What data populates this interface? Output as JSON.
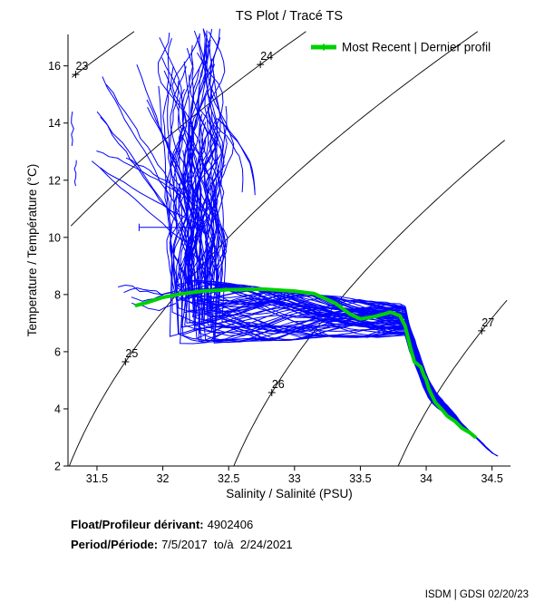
{
  "annotations": {
    "float_label": "Float/Profileur dérivant:",
    "float_value": "4902406",
    "period_label": "Period/Période:",
    "period_value": "7/5/2017  to/à  2/24/2021",
    "credit": "ISDM | GDSI 02/20/23"
  },
  "chart_data": {
    "type": "line",
    "title": "TS Plot / Tracé TS",
    "xlabel": "Salinity / Salinité (PSU)",
    "ylabel": "Temperature / Température (°C)",
    "xlim": [
      31.28,
      34.64
    ],
    "ylim": [
      2,
      17.1
    ],
    "x_ticks": [
      "31.5",
      "32",
      "32.5",
      "33",
      "33.5",
      "34",
      "34.5"
    ],
    "y_ticks": [
      "2",
      "4",
      "6",
      "8",
      "10",
      "12",
      "14",
      "16"
    ],
    "grid": false,
    "legend_position": "top-right",
    "isopycnal_contours": {
      "sigma_t_values": [
        23,
        24,
        25,
        26,
        27
      ],
      "label_temperatures": {
        "23": 15.7,
        "24": 16.05,
        "25": 5.65,
        "26": 4.57,
        "27": 6.73
      },
      "color": "#000000"
    },
    "most_recent_profile": {
      "name": "Most Recent | Dernier profil",
      "color": "#00d000",
      "points_salinity_temperature": [
        [
          31.8,
          7.62
        ],
        [
          31.88,
          7.72
        ],
        [
          32.0,
          7.9
        ],
        [
          32.14,
          8.02
        ],
        [
          32.3,
          8.12
        ],
        [
          32.5,
          8.17
        ],
        [
          32.76,
          8.19
        ],
        [
          33.0,
          8.12
        ],
        [
          33.15,
          8.03
        ],
        [
          33.31,
          7.7
        ],
        [
          33.42,
          7.32
        ],
        [
          33.5,
          7.15
        ],
        [
          33.6,
          7.22
        ],
        [
          33.73,
          7.38
        ],
        [
          33.8,
          7.26
        ],
        [
          33.84,
          6.9
        ],
        [
          33.88,
          6.15
        ],
        [
          33.91,
          5.65
        ],
        [
          33.96,
          5.46
        ],
        [
          33.98,
          5.2
        ],
        [
          34.0,
          5.02
        ],
        [
          34.02,
          4.7
        ],
        [
          34.04,
          4.5
        ],
        [
          34.07,
          4.22
        ],
        [
          34.12,
          3.97
        ],
        [
          34.16,
          3.75
        ],
        [
          34.22,
          3.56
        ],
        [
          34.27,
          3.33
        ],
        [
          34.33,
          3.17
        ],
        [
          34.37,
          3.02
        ]
      ]
    },
    "profiles_ensemble": {
      "color": "#0000ff",
      "count": 72,
      "seed": 11,
      "surface_cluster": {
        "s_center": 32.26,
        "s_halfwidth": 0.17,
        "t_top_max": 17.3,
        "t_top_min": 9.5,
        "t_join_min": 8.2,
        "t_join_max": 8.9
      },
      "mid_band": {
        "s_left": 32.02,
        "s_right": 33.82,
        "t_top_left": 8.6,
        "t_top_right": 7.6,
        "t_bottom_left": 6.3,
        "t_bottom_right": 6.6
      },
      "deep_limb_centerline": [
        [
          33.83,
          7.04
        ],
        [
          33.88,
          6.16
        ],
        [
          33.93,
          5.62
        ],
        [
          33.98,
          4.98
        ],
        [
          34.03,
          4.44
        ],
        [
          34.1,
          4.09
        ],
        [
          34.19,
          3.78
        ],
        [
          34.26,
          3.46
        ],
        [
          34.34,
          3.17
        ],
        [
          34.41,
          2.86
        ],
        [
          34.48,
          2.54
        ],
        [
          34.53,
          2.35
        ]
      ],
      "left_fan": {
        "count": 12,
        "s_min": 31.33,
        "s_max": 31.98,
        "t_min": 12.2,
        "t_max": 16.4,
        "join_s_min": 32.08,
        "join_s_max": 32.35,
        "join_t_min": 8.8,
        "join_t_max": 11.5
      },
      "left_band_strands": {
        "count": 4,
        "s_min": 31.62,
        "s_max": 31.8,
        "t_min": 7.4,
        "t_max": 8.2,
        "join_s": 32.1
      },
      "right_strands": {
        "count": 3,
        "s_start_min": 32.35,
        "s_start_max": 32.5,
        "t_start_min": 13.0,
        "t_start_max": 15.6,
        "s_end_min": 32.55,
        "s_end_max": 32.72,
        "t_end_min": 9.8,
        "t_end_max": 11.8
      },
      "capped_segments": [
        {
          "s1": 31.82,
          "s2": 32.28,
          "t": 10.35
        },
        {
          "s1": 32.17,
          "s2": 32.37,
          "t": 8.2
        }
      ],
      "edge_segments": [
        {
          "s": 31.31,
          "t1": 13.2,
          "t2": 14.4
        },
        {
          "s": 31.34,
          "t1": 11.8,
          "t2": 12.7
        }
      ]
    }
  }
}
